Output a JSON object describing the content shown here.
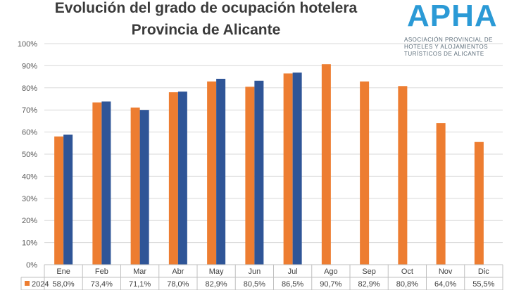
{
  "title_line1": "Evolución del grado de ocupación hotelera",
  "title_line2": "Provincia de Alicante",
  "logo": {
    "wordmark": "APHA",
    "line1": "ASOCIACIÓN PROVINCIAL DE",
    "line2": "HOTELES Y ALOJAMIENTOS",
    "line3": "TURÍSTICOS DE ALICANTE",
    "color": "#2b9ad6"
  },
  "chart_data": {
    "type": "bar",
    "categories": [
      "Ene",
      "Feb",
      "Mar",
      "Abr",
      "May",
      "Jun",
      "Jul",
      "Ago",
      "Sep",
      "Oct",
      "Nov",
      "Dic"
    ],
    "series": [
      {
        "name": "2024",
        "color": "#ed7d31",
        "values": [
          58.0,
          73.4,
          71.1,
          78.0,
          82.9,
          80.5,
          86.5,
          90.7,
          82.9,
          80.8,
          64.0,
          55.5
        ],
        "labels": [
          "58,0%",
          "73,4%",
          "71,1%",
          "78,0%",
          "82,9%",
          "80,5%",
          "86,5%",
          "90,7%",
          "82,9%",
          "80,8%",
          "64,0%",
          "55,5%"
        ]
      },
      {
        "color": "#2f5597",
        "values": [
          58.8,
          73.8,
          70.0,
          78.3,
          84.1,
          83.2,
          86.9,
          null,
          null,
          null,
          null,
          null
        ]
      }
    ],
    "y_ticks": [
      "0%",
      "10%",
      "20%",
      "30%",
      "40%",
      "50%",
      "60%",
      "70%",
      "80%",
      "90%",
      "100%"
    ],
    "ylim": [
      0,
      100
    ],
    "grid": true,
    "legend": "data table below chart"
  }
}
